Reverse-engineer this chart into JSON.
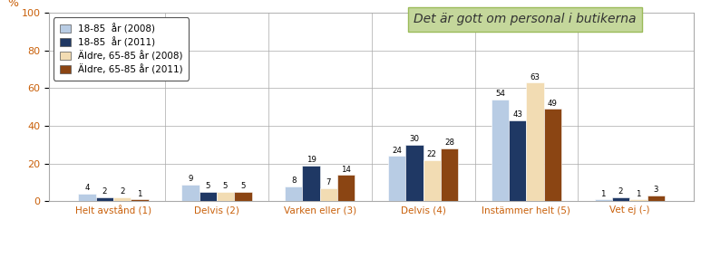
{
  "categories": [
    "Helt avstånd (1)",
    "Delvis (2)",
    "Varken eller (3)",
    "Delvis (4)",
    "Instämmer helt (5)",
    "Vet ej (-)"
  ],
  "series": [
    {
      "label": "18-85  år (2008)",
      "values": [
        4,
        9,
        8,
        24,
        54,
        1
      ],
      "color": "#b8cce4"
    },
    {
      "label": "18-85  år (2011)",
      "values": [
        2,
        5,
        19,
        30,
        43,
        2
      ],
      "color": "#1f3864"
    },
    {
      "label": "Äldre, 65-85 år (2008)",
      "values": [
        2,
        5,
        7,
        22,
        63,
        1
      ],
      "color": "#f2dcb3"
    },
    {
      "label": "Äldre, 65-85 år (2011)",
      "values": [
        1,
        5,
        14,
        28,
        49,
        3
      ],
      "color": "#8b4513"
    }
  ],
  "ylim": [
    0,
    100
  ],
  "yticks": [
    0,
    20,
    40,
    60,
    80,
    100
  ],
  "ylabel": "%",
  "title_box_text": "Det är gott om personal i butikerna",
  "title_box_color": "#c4d79b",
  "title_box_edge": "#9bbb59",
  "background_color": "#ffffff",
  "grid_color": "#aaaaaa",
  "bar_width": 0.17,
  "xlabel_color": "#c9600a",
  "label_fontsize": 7.5,
  "ytick_color": "#c9600a"
}
